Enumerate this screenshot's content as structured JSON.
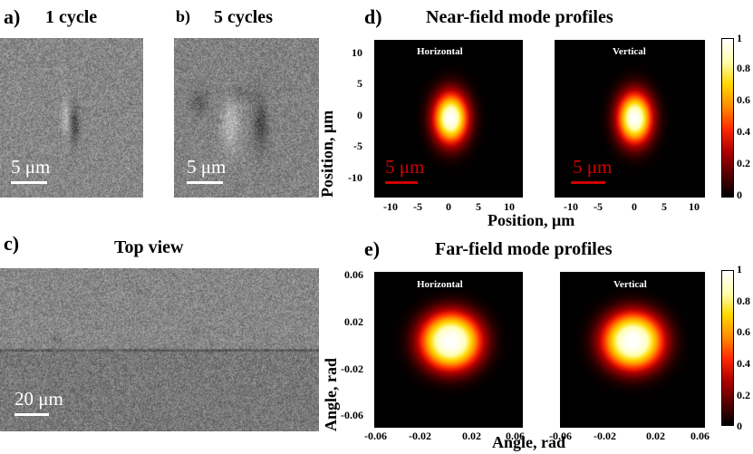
{
  "panel_a": {
    "label": "a)",
    "title": "1 cycle",
    "scalebar": "5 μm"
  },
  "panel_b": {
    "label": "b)",
    "title": "5 cycles",
    "scalebar": "5 μm"
  },
  "panel_c": {
    "label": "c)",
    "title": "Top view",
    "scalebar": "20 μm"
  },
  "panel_d": {
    "label": "d)",
    "title": "Near-field mode profiles",
    "maps": [
      {
        "label": "Horizontal",
        "scalebar": "5 μm"
      },
      {
        "label": "Vertical",
        "scalebar": "5 μm"
      }
    ],
    "ylabel": "Position, μm",
    "xlabel": "Position, μm",
    "yticks": [
      "10",
      "5",
      "0",
      "-5",
      "-10"
    ],
    "xticks": [
      "-10",
      "-5",
      "0",
      "5",
      "10"
    ],
    "colorbar_ticks": [
      "1",
      "0.8",
      "0.6",
      "0.4",
      "0.2",
      "0"
    ]
  },
  "panel_e": {
    "label": "e)",
    "title": "Far-field mode profiles",
    "maps": [
      {
        "label": "Horizontal"
      },
      {
        "label": "Vertical"
      }
    ],
    "ylabel": "Angle, rad",
    "xlabel": "Angle, rad",
    "yticks": [
      "0.06",
      "0.02",
      "-0.02",
      "-0.06"
    ],
    "xticks": [
      "-0.06",
      "-0.02",
      "0.02",
      "0.06"
    ],
    "colorbar_ticks": [
      "1",
      "0.8",
      "0.6",
      "0.4",
      "0.2",
      "0"
    ]
  },
  "colors": {
    "colormap": [
      "#000000",
      "#5a0000",
      "#b00000",
      "#ff2a00",
      "#ff8c00",
      "#ffd800",
      "#ffffb0",
      "#ffffff"
    ],
    "scalebar_sem": "#ffffff",
    "scalebar_map": "#d00000"
  }
}
